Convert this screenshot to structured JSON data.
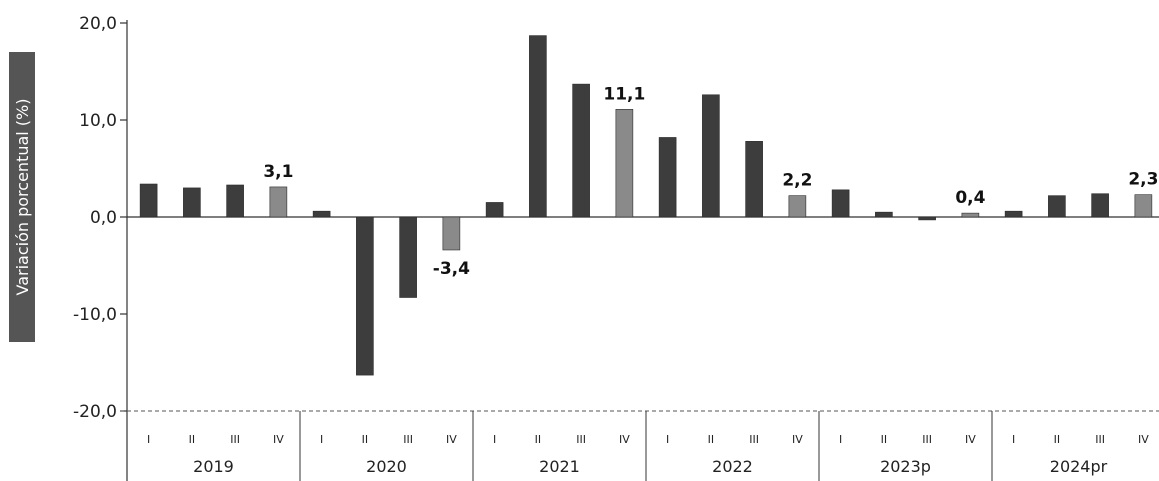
{
  "chart_data": {
    "type": "bar",
    "ylabel": "Variación porcentual (%)",
    "ylim": [
      -20,
      20
    ],
    "yticks": [
      20,
      10,
      0,
      -10,
      -20
    ],
    "ytick_labels": [
      "20,0",
      "10,0",
      "0,0",
      "-10,0",
      "-20,0"
    ],
    "quarter_labels": [
      "I",
      "II",
      "III",
      "IV"
    ],
    "years": [
      "2019",
      "2020",
      "2021",
      "2022",
      "2023p",
      "2024pr"
    ],
    "categories": [
      "2019 I",
      "2019 II",
      "2019 III",
      "2019 IV",
      "2020 I",
      "2020 II",
      "2020 III",
      "2020 IV",
      "2021 I",
      "2021 II",
      "2021 III",
      "2021 IV",
      "2022 I",
      "2022 II",
      "2022 III",
      "2022 IV",
      "2023p I",
      "2023p II",
      "2023p III",
      "2023p IV",
      "2024pr I",
      "2024pr II",
      "2024pr III",
      "2024pr IV"
    ],
    "values": [
      3.4,
      3.0,
      3.3,
      3.1,
      0.6,
      -16.3,
      -8.3,
      -3.4,
      1.5,
      18.7,
      13.7,
      11.1,
      8.2,
      12.6,
      7.8,
      2.2,
      2.8,
      0.5,
      -0.3,
      0.4,
      0.6,
      2.2,
      2.4,
      2.3
    ],
    "data_labels": [
      {
        "index": 3,
        "text": "3,1"
      },
      {
        "index": 7,
        "text": "-3,4"
      },
      {
        "index": 11,
        "text": "11,1"
      },
      {
        "index": 15,
        "text": "2,2"
      },
      {
        "index": 19,
        "text": "0,4"
      },
      {
        "index": 23,
        "text": "2,3"
      }
    ],
    "colors": {
      "bar_dark": "#3d3d3d",
      "bar_light": "#8a8a8a",
      "axis": "#333333",
      "grid_dashed": "#555555",
      "ylabel_box": "#555555"
    }
  }
}
